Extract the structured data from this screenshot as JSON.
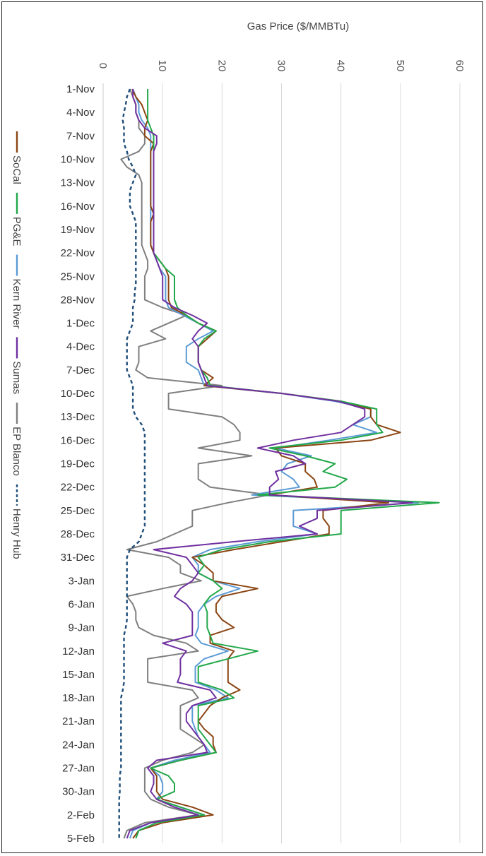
{
  "chart_data": {
    "type": "line",
    "title": "",
    "xlabel": "Gas Price ($/MMBTu)",
    "ylabel": "",
    "xlim": [
      0,
      60
    ],
    "x_ticks": [
      0,
      10,
      20,
      30,
      40,
      50,
      60
    ],
    "categories": [
      "1-Nov",
      "2-Nov",
      "3-Nov",
      "4-Nov",
      "5-Nov",
      "6-Nov",
      "7-Nov",
      "8-Nov",
      "9-Nov",
      "10-Nov",
      "11-Nov",
      "12-Nov",
      "13-Nov",
      "14-Nov",
      "15-Nov",
      "16-Nov",
      "17-Nov",
      "18-Nov",
      "19-Nov",
      "20-Nov",
      "21-Nov",
      "22-Nov",
      "23-Nov",
      "24-Nov",
      "25-Nov",
      "26-Nov",
      "27-Nov",
      "28-Nov",
      "29-Nov",
      "30-Nov",
      "1-Dec",
      "2-Dec",
      "3-Dec",
      "4-Dec",
      "5-Dec",
      "6-Dec",
      "7-Dec",
      "8-Dec",
      "9-Dec",
      "10-Dec",
      "11-Dec",
      "12-Dec",
      "13-Dec",
      "14-Dec",
      "15-Dec",
      "16-Dec",
      "17-Dec",
      "18-Dec",
      "19-Dec",
      "20-Dec",
      "21-Dec",
      "22-Dec",
      "23-Dec",
      "24-Dec",
      "25-Dec",
      "26-Dec",
      "27-Dec",
      "28-Dec",
      "29-Dec",
      "30-Dec",
      "31-Dec",
      "1-Jan",
      "2-Jan",
      "3-Jan",
      "4-Jan",
      "5-Jan",
      "6-Jan",
      "7-Jan",
      "8-Jan",
      "9-Jan",
      "10-Jan",
      "11-Jan",
      "12-Jan",
      "13-Jan",
      "14-Jan",
      "15-Jan",
      "16-Jan",
      "17-Jan",
      "18-Jan",
      "19-Jan",
      "20-Jan",
      "21-Jan",
      "22-Jan",
      "23-Jan",
      "24-Jan",
      "25-Jan",
      "26-Jan",
      "27-Jan",
      "28-Jan",
      "29-Jan",
      "30-Jan",
      "31-Jan",
      "1-Feb",
      "2-Feb",
      "3-Feb",
      "4-Feb",
      "5-Feb"
    ],
    "tick_labels": [
      "1-Nov",
      "4-Nov",
      "7-Nov",
      "10-Nov",
      "13-Nov",
      "16-Nov",
      "19-Nov",
      "22-Nov",
      "25-Nov",
      "28-Nov",
      "1-Dec",
      "4-Dec",
      "7-Dec",
      "10-Dec",
      "13-Dec",
      "16-Dec",
      "19-Dec",
      "22-Dec",
      "25-Dec",
      "28-Dec",
      "31-Dec",
      "3-Jan",
      "6-Jan",
      "9-Jan",
      "12-Jan",
      "15-Jan",
      "18-Jan",
      "21-Jan",
      "24-Jan",
      "27-Jan",
      "30-Jan",
      "2-Feb",
      "5-Feb"
    ],
    "grid": true,
    "legend_position": "left",
    "series": [
      {
        "name": "SoCal",
        "color": "#8B4513",
        "dash": "solid",
        "values": [
          4.9,
          5.5,
          6.5,
          7.0,
          7.5,
          7.0,
          7.0,
          8.5,
          8.0,
          8.0,
          8.0,
          8.0,
          8.0,
          8.0,
          8.0,
          8.0,
          8.5,
          8.0,
          8.0,
          8.0,
          8.0,
          8.5,
          9.5,
          10.5,
          11.0,
          11.0,
          11.0,
          11.0,
          11.5,
          14.0,
          16.0,
          19.0,
          17.5,
          16.0,
          16.0,
          16.0,
          16.5,
          18.5,
          17.0,
          30.0,
          40.0,
          45.0,
          45.0,
          46.0,
          50.0,
          45.0,
          29.0,
          30.0,
          34.0,
          34.0,
          35.5,
          36.0,
          28.0,
          48.0,
          37.0,
          37.0,
          38.0,
          38.0,
          30.0,
          22.0,
          15.0,
          17.0,
          18.5,
          18.5,
          26.0,
          20.0,
          19.0,
          19.0,
          20.0,
          22.0,
          18.0,
          18.0,
          22.0,
          21.0,
          21.0,
          21.0,
          21.0,
          23.0,
          20.0,
          18.0,
          17.0,
          16.0,
          17.0,
          18.5,
          18.5,
          19.0,
          13.0,
          8.0,
          9.0,
          9.0,
          9.0,
          10.0,
          15.0,
          18.5,
          10.0,
          6.0,
          5.0
        ]
      },
      {
        "name": "PG&E",
        "color": "#22A84A",
        "dash": "solid",
        "values": [
          7.5,
          7.5,
          7.5,
          7.5,
          7.5,
          8.0,
          8.5,
          8.5,
          8.5,
          8.5,
          8.5,
          8.5,
          8.5,
          8.5,
          8.5,
          8.5,
          8.5,
          8.5,
          8.5,
          8.5,
          8.5,
          8.5,
          9.5,
          10.5,
          12.0,
          12.0,
          12.0,
          12.0,
          12.5,
          14.0,
          16.0,
          19.0,
          17.0,
          16.0,
          16.0,
          16.0,
          16.5,
          17.5,
          18.0,
          30.0,
          40.0,
          46.0,
          46.0,
          46.0,
          47.0,
          40.0,
          28.0,
          34.0,
          39.0,
          37.0,
          41.0,
          39.0,
          26.0,
          56.5,
          40.0,
          40.0,
          40.0,
          40.0,
          28.0,
          20.0,
          16.0,
          17.0,
          16.0,
          18.5,
          20.0,
          18.0,
          17.0,
          17.5,
          17.5,
          17.5,
          18.0,
          18.5,
          26.0,
          21.0,
          16.0,
          16.0,
          16.0,
          20.0,
          22.0,
          16.0,
          16.0,
          16.0,
          16.0,
          17.0,
          18.0,
          19.0,
          13.0,
          8.0,
          11.0,
          12.0,
          12.0,
          9.0,
          13.0,
          17.0,
          9.0,
          6.0,
          5.5
        ]
      },
      {
        "name": "Kern River",
        "color": "#5B9BD5",
        "dash": "solid",
        "values": [
          5.0,
          5.5,
          6.0,
          6.0,
          6.5,
          7.5,
          8.0,
          8.0,
          8.0,
          8.0,
          8.0,
          8.0,
          8.0,
          8.0,
          8.0,
          8.0,
          8.0,
          8.0,
          8.0,
          8.0,
          8.0,
          8.5,
          9.0,
          9.5,
          10.5,
          10.5,
          10.5,
          10.5,
          11.0,
          13.5,
          16.0,
          18.5,
          16.0,
          14.0,
          14.0,
          14.0,
          16.0,
          16.5,
          17.0,
          30.0,
          39.0,
          45.0,
          45.0,
          42.0,
          46.0,
          38.0,
          29.0,
          35.0,
          31.0,
          30.0,
          32.0,
          33.0,
          25.0,
          53.0,
          32.0,
          32.0,
          32.0,
          36.0,
          26.0,
          18.0,
          15.0,
          16.0,
          16.0,
          18.5,
          23.0,
          19.0,
          17.0,
          16.0,
          16.0,
          16.0,
          15.5,
          16.5,
          21.0,
          17.0,
          15.5,
          15.5,
          15.5,
          19.0,
          21.0,
          15.0,
          15.0,
          15.0,
          15.5,
          16.0,
          17.0,
          18.0,
          12.0,
          8.0,
          9.5,
          10.0,
          10.0,
          9.0,
          13.0,
          17.0,
          8.0,
          5.0,
          4.5
        ]
      },
      {
        "name": "Sumas",
        "color": "#7030A0",
        "dash": "solid",
        "values": [
          5.0,
          5.0,
          5.5,
          5.5,
          6.0,
          7.0,
          9.0,
          9.0,
          8.5,
          8.5,
          8.5,
          8.5,
          8.5,
          8.5,
          8.5,
          8.5,
          8.5,
          8.5,
          8.5,
          8.5,
          8.5,
          8.5,
          9.0,
          9.5,
          10.0,
          10.0,
          10.0,
          10.0,
          12.0,
          15.0,
          17.5,
          16.0,
          15.0,
          16.0,
          16.0,
          16.0,
          16.5,
          17.0,
          17.5,
          30.0,
          39.5,
          44.0,
          44.0,
          42.0,
          40.0,
          32.0,
          26.0,
          32.0,
          34.0,
          29.0,
          29.5,
          28.0,
          28.0,
          52.0,
          36.0,
          36.0,
          33.0,
          36.0,
          22.0,
          8.5,
          14.0,
          15.0,
          16.0,
          15.0,
          13.0,
          12.0,
          14.0,
          15.0,
          15.0,
          15.0,
          15.0,
          10.0,
          14.0,
          13.0,
          13.0,
          13.0,
          12.5,
          18.0,
          19.0,
          15.0,
          14.0,
          14.0,
          15.0,
          16.0,
          17.0,
          17.5,
          9.0,
          7.5,
          8.5,
          8.5,
          8.0,
          9.0,
          12.0,
          16.0,
          8.0,
          4.5,
          4.0
        ]
      },
      {
        "name": "EP Blanco",
        "color": "#7F7F7F",
        "dash": "solid",
        "values": [
          4.5,
          5.0,
          5.5,
          5.5,
          6.0,
          6.0,
          7.0,
          7.0,
          6.0,
          3.0,
          4.0,
          6.0,
          6.5,
          6.5,
          6.5,
          6.5,
          6.5,
          6.5,
          6.5,
          6.5,
          6.5,
          7.0,
          7.5,
          7.5,
          7.0,
          7.0,
          7.0,
          7.0,
          10.0,
          14.0,
          11.0,
          8.0,
          10.5,
          6.0,
          6.0,
          6.0,
          5.5,
          7.5,
          20.0,
          11.0,
          11.0,
          11.0,
          20.0,
          22.0,
          23.0,
          23.0,
          16.0,
          25.0,
          16.0,
          16.0,
          16.0,
          18.0,
          28.0,
          21.0,
          15.0,
          15.0,
          15.0,
          12.0,
          9.0,
          4.0,
          11.0,
          13.0,
          13.0,
          16.5,
          10.0,
          4.0,
          5.0,
          5.5,
          5.5,
          6.0,
          8.5,
          14.0,
          16.0,
          7.5,
          7.5,
          7.5,
          7.5,
          15.0,
          16.0,
          13.0,
          13.0,
          13.0,
          13.0,
          15.0,
          17.0,
          15.0,
          10.0,
          7.0,
          7.0,
          7.0,
          7.0,
          8.0,
          11.0,
          16.0,
          7.0,
          4.0,
          3.5
        ]
      },
      {
        "name": "Henry Hub",
        "color": "#1F4E79",
        "dash": "dashed",
        "values": [
          4.5,
          4.0,
          3.8,
          3.5,
          3.3,
          3.5,
          3.5,
          3.5,
          4.0,
          4.3,
          5.0,
          5.5,
          5.0,
          4.5,
          4.5,
          4.5,
          5.0,
          5.5,
          5.5,
          5.5,
          5.5,
          5.5,
          5.5,
          5.5,
          5.5,
          5.5,
          5.3,
          5.3,
          5.0,
          5.0,
          5.0,
          4.5,
          4.0,
          4.0,
          4.0,
          4.0,
          4.0,
          4.5,
          5.0,
          5.0,
          5.0,
          5.0,
          5.5,
          6.5,
          7.0,
          7.0,
          7.0,
          7.0,
          7.0,
          7.0,
          7.0,
          7.0,
          7.0,
          7.0,
          7.0,
          7.0,
          7.0,
          6.5,
          6.0,
          4.5,
          4.0,
          4.0,
          4.0,
          4.0,
          4.0,
          4.0,
          4.0,
          4.0,
          4.0,
          3.8,
          3.5,
          3.5,
          3.5,
          3.5,
          3.5,
          3.5,
          3.5,
          3.3,
          3.0,
          3.0,
          3.0,
          3.0,
          3.0,
          3.0,
          3.0,
          3.0,
          3.0,
          3.0,
          2.8,
          2.8,
          2.8,
          2.7,
          2.7,
          2.7,
          2.7,
          2.7,
          2.7
        ]
      }
    ]
  }
}
